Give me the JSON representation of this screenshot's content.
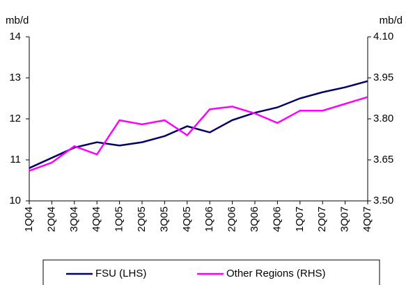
{
  "chart_data": {
    "type": "line",
    "y_label": "mb/d",
    "y2_label": "mb/d",
    "categories": [
      "1Q04",
      "2Q04",
      "3Q04",
      "4Q04",
      "1Q05",
      "2Q05",
      "3Q05",
      "4Q05",
      "1Q06",
      "2Q06",
      "3Q06",
      "4Q06",
      "1Q07",
      "2Q07",
      "3Q07",
      "4Q07"
    ],
    "ylim": [
      10,
      14
    ],
    "yticks": [
      10,
      11,
      12,
      13,
      14
    ],
    "y2lim": [
      3.5,
      4.1
    ],
    "y2ticks": [
      {
        "value": 3.5,
        "label": "3.50"
      },
      3.65,
      {
        "value": 3.8,
        "label": "3.80"
      },
      3.95,
      {
        "value": 4.1,
        "label": "4.10"
      }
    ],
    "grid": false,
    "series": [
      {
        "name": "FSU (LHS)",
        "color": "#000066",
        "values": [
          10.8,
          11.05,
          11.3,
          11.43,
          11.35,
          11.43,
          11.58,
          11.82,
          11.67,
          11.97,
          12.15,
          12.28,
          12.5,
          12.65,
          12.77,
          12.92
        ]
      },
      {
        "name": "Other Regions (RHS)",
        "color": "#ff00ff",
        "axis": "y2",
        "values": [
          3.61,
          3.64,
          3.7,
          3.67,
          3.795,
          3.78,
          3.795,
          3.74,
          3.835,
          3.845,
          3.82,
          3.785,
          3.83,
          3.83,
          3.855,
          3.88
        ]
      }
    ]
  }
}
